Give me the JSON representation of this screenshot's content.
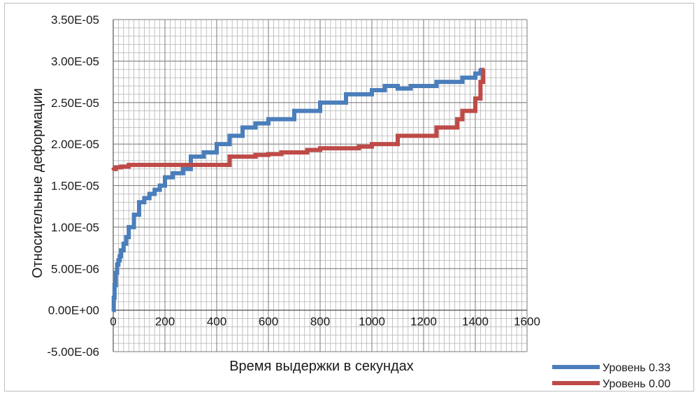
{
  "chart_data": {
    "type": "line",
    "xlabel": "Время выдержки в секундах",
    "ylabel": "Относительные деформации",
    "xlim": [
      0,
      1600
    ],
    "ylim": [
      -5e-06,
      3.5e-05
    ],
    "x_ticks": [
      "0",
      "200",
      "400",
      "600",
      "800",
      "1000",
      "1200",
      "1400",
      "1600"
    ],
    "y_ticks": [
      "-5.00E-06",
      "0.00E+00",
      "5.00E-06",
      "1.00E-05",
      "1.50E-05",
      "2.00E-05",
      "2.50E-05",
      "3.00E-05",
      "3.50E-05"
    ],
    "grid": true,
    "legend_position": "bottom-right",
    "series": [
      {
        "name": "Уровень 0.33",
        "color": "#4a7ebb",
        "x": [
          0,
          2,
          5,
          10,
          15,
          20,
          25,
          30,
          40,
          50,
          60,
          80,
          100,
          120,
          140,
          160,
          180,
          200,
          230,
          270,
          300,
          350,
          400,
          450,
          500,
          550,
          600,
          700,
          800,
          900,
          1000,
          1050,
          1100,
          1150,
          1200,
          1250,
          1300,
          1350,
          1400,
          1420
        ],
        "y": [
          0,
          1.5e-06,
          3e-06,
          4.5e-06,
          5.5e-06,
          6e-06,
          6.5e-06,
          7.2e-06,
          8e-06,
          8.8e-06,
          1e-05,
          1.15e-05,
          1.3e-05,
          1.35e-05,
          1.4e-05,
          1.45e-05,
          1.5e-05,
          1.6e-05,
          1.65e-05,
          1.7e-05,
          1.85e-05,
          1.9e-05,
          2e-05,
          2.1e-05,
          2.2e-05,
          2.25e-05,
          2.3e-05,
          2.4e-05,
          2.5e-05,
          2.6e-05,
          2.65e-05,
          2.7e-05,
          2.67e-05,
          2.7e-05,
          2.7e-05,
          2.75e-05,
          2.75e-05,
          2.8e-05,
          2.85e-05,
          2.9e-05
        ]
      },
      {
        "name": "Уровень 0.00",
        "color": "#be4b48",
        "x": [
          0,
          10,
          30,
          60,
          100,
          150,
          200,
          250,
          300,
          350,
          400,
          450,
          500,
          550,
          600,
          650,
          700,
          750,
          800,
          850,
          900,
          950,
          1000,
          1050,
          1100,
          1150,
          1200,
          1250,
          1300,
          1330,
          1350,
          1380,
          1400,
          1420,
          1430
        ],
        "y": [
          1.7e-05,
          1.72e-05,
          1.73e-05,
          1.75e-05,
          1.75e-05,
          1.75e-05,
          1.75e-05,
          1.75e-05,
          1.75e-05,
          1.75e-05,
          1.75e-05,
          1.85e-05,
          1.85e-05,
          1.87e-05,
          1.88e-05,
          1.9e-05,
          1.9e-05,
          1.93e-05,
          1.95e-05,
          1.95e-05,
          1.95e-05,
          1.97e-05,
          2e-05,
          2e-05,
          2.1e-05,
          2.1e-05,
          2.1e-05,
          2.2e-05,
          2.2e-05,
          2.3e-05,
          2.4e-05,
          2.4e-05,
          2.55e-05,
          2.75e-05,
          2.9e-05
        ]
      }
    ]
  }
}
